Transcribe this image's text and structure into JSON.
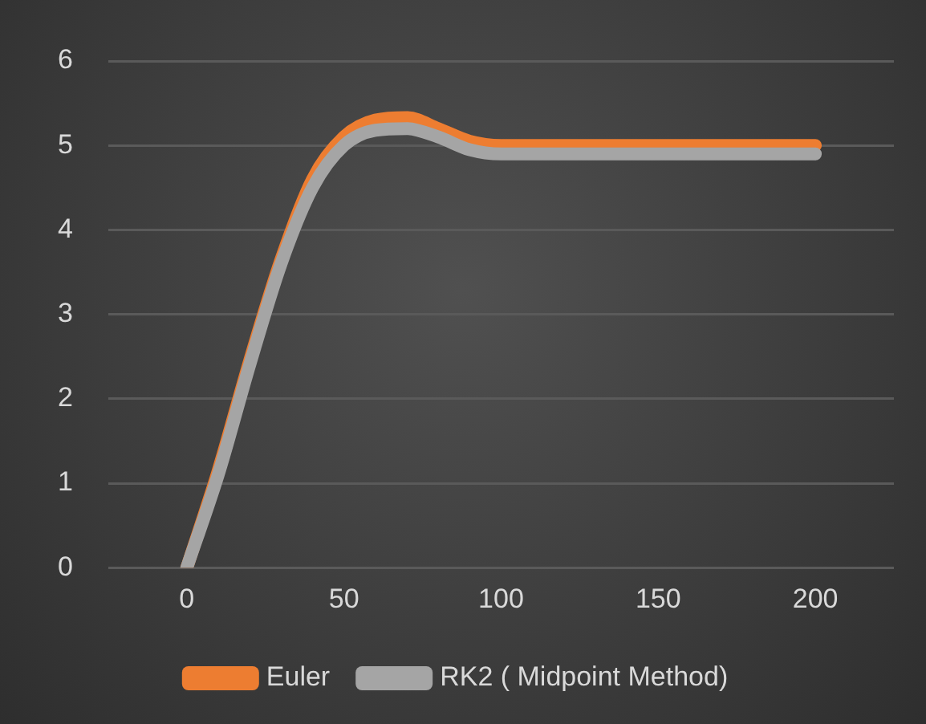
{
  "chart_data": {
    "type": "line",
    "x": [
      0,
      10,
      20,
      30,
      40,
      50,
      60,
      70,
      80,
      90,
      100,
      150,
      200
    ],
    "series": [
      {
        "name": "Euler",
        "color": "#ed7d31",
        "values": [
          0,
          1.15,
          2.45,
          3.65,
          4.6,
          5.1,
          5.3,
          5.33,
          5.2,
          5.05,
          5.0,
          5.0,
          5.0
        ]
      },
      {
        "name": "RK2 ( Midpoint Method)",
        "color": "#a5a5a5",
        "values": [
          0,
          1.1,
          2.4,
          3.6,
          4.5,
          5.0,
          5.18,
          5.2,
          5.1,
          4.95,
          4.9,
          4.9,
          4.9
        ]
      }
    ],
    "xlim": [
      -25,
      225
    ],
    "xticks": [
      0,
      50,
      100,
      150,
      200
    ],
    "ylim": [
      0,
      6
    ],
    "yticks": [
      0,
      1,
      2,
      3,
      4,
      5,
      6
    ],
    "grid": "y",
    "legend": "bottom",
    "marker": "none",
    "line_style": "solid"
  }
}
